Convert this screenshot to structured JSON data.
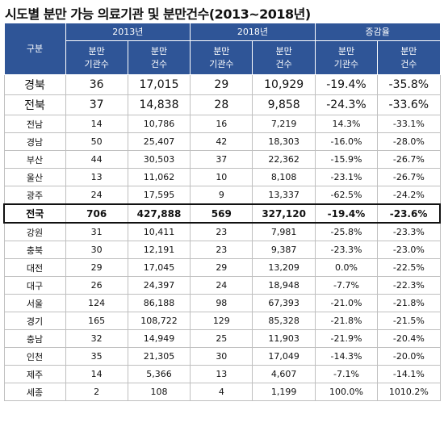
{
  "title": "시도별 분만 가능 의료기관 및 분만건수(2013~2018년)",
  "table": {
    "header": {
      "region": "구분",
      "groups": [
        "2013년",
        "2018년",
        "증감율"
      ],
      "subheaders": [
        "분만\n기관수",
        "분만\n건수",
        "분만\n기관수",
        "분만\n건수",
        "분만\n기관수",
        "분만\n건수"
      ]
    },
    "rows": [
      [
        "경북",
        "36",
        "17,015",
        "29",
        "10,929",
        "-19.4%",
        "-35.8%"
      ],
      [
        "전북",
        "37",
        "14,838",
        "28",
        "9,858",
        "-24.3%",
        "-33.6%"
      ],
      [
        "전남",
        "14",
        "10,786",
        "16",
        "7,219",
        "14.3%",
        "-33.1%"
      ],
      [
        "경남",
        "50",
        "25,407",
        "42",
        "18,303",
        "-16.0%",
        "-28.0%"
      ],
      [
        "부산",
        "44",
        "30,503",
        "37",
        "22,362",
        "-15.9%",
        "-26.7%"
      ],
      [
        "울산",
        "13",
        "11,062",
        "10",
        "8,108",
        "-23.1%",
        "-26.7%"
      ],
      [
        "광주",
        "24",
        "17,595",
        "9",
        "13,337",
        "-62.5%",
        "-24.2%"
      ],
      [
        "전국",
        "706",
        "427,888",
        "569",
        "327,120",
        "-19.4%",
        "-23.6%"
      ],
      [
        "강원",
        "31",
        "10,411",
        "23",
        "7,981",
        "-25.8%",
        "-23.3%"
      ],
      [
        "충북",
        "30",
        "12,191",
        "23",
        "9,387",
        "-23.3%",
        "-23.0%"
      ],
      [
        "대전",
        "29",
        "17,045",
        "29",
        "13,209",
        "0.0%",
        "-22.5%"
      ],
      [
        "대구",
        "26",
        "24,397",
        "24",
        "18,948",
        "-7.7%",
        "-22.3%"
      ],
      [
        "서울",
        "124",
        "86,188",
        "98",
        "67,393",
        "-21.0%",
        "-21.8%"
      ],
      [
        "경기",
        "165",
        "108,722",
        "129",
        "85,328",
        "-21.8%",
        "-21.5%"
      ],
      [
        "충남",
        "32",
        "14,949",
        "25",
        "11,903",
        "-21.9%",
        "-20.4%"
      ],
      [
        "인천",
        "35",
        "21,305",
        "30",
        "17,049",
        "-14.3%",
        "-20.0%"
      ],
      [
        "제주",
        "14",
        "5,366",
        "13",
        "4,607",
        "-7.1%",
        "-14.1%"
      ],
      [
        "세종",
        "2",
        "108",
        "4",
        "1,199",
        "100.0%",
        "1010.2%"
      ]
    ]
  }
}
